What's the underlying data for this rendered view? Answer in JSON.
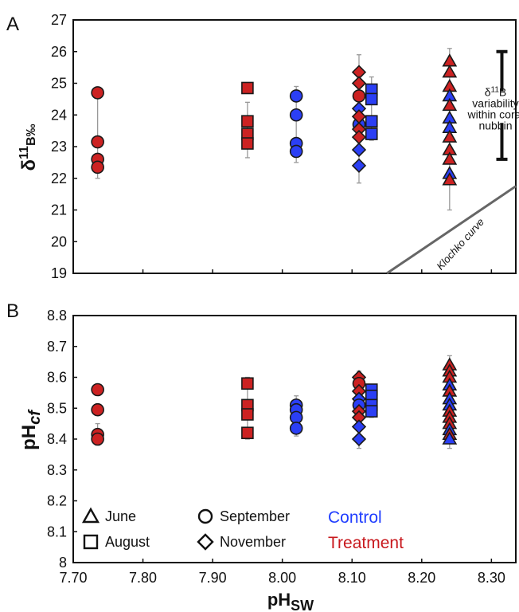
{
  "chart_data": [
    {
      "panel_label": "A",
      "type": "scatter",
      "ylabel_main": "δ",
      "ylabel_sup": "11",
      "ylabel_sub": "B‰",
      "ylim": [
        19,
        27
      ],
      "xlim": [
        7.7,
        8.335
      ],
      "yticks": [
        "19",
        "20",
        "21",
        "22",
        "23",
        "24",
        "25",
        "26",
        "27"
      ],
      "points": [
        {
          "x": 7.735,
          "y": 24.7,
          "month": "September",
          "group": "Treatment"
        },
        {
          "x": 7.735,
          "y": 23.15,
          "month": "September",
          "group": "Treatment"
        },
        {
          "x": 7.735,
          "y": 22.6,
          "month": "September",
          "group": "Treatment"
        },
        {
          "x": 7.735,
          "y": 22.35,
          "month": "September",
          "group": "Treatment"
        },
        {
          "x": 7.95,
          "y": 24.85,
          "month": "August",
          "group": "Treatment"
        },
        {
          "x": 7.95,
          "y": 23.8,
          "month": "August",
          "group": "Treatment"
        },
        {
          "x": 7.95,
          "y": 23.4,
          "month": "August",
          "group": "Treatment"
        },
        {
          "x": 7.95,
          "y": 23.1,
          "month": "August",
          "group": "Treatment"
        },
        {
          "x": 8.02,
          "y": 24.6,
          "month": "September",
          "group": "Control"
        },
        {
          "x": 8.02,
          "y": 24.0,
          "month": "September",
          "group": "Control"
        },
        {
          "x": 8.02,
          "y": 23.1,
          "month": "September",
          "group": "Control"
        },
        {
          "x": 8.02,
          "y": 22.85,
          "month": "September",
          "group": "Control"
        },
        {
          "x": 8.11,
          "y": 25.35,
          "month": "November",
          "group": "Treatment"
        },
        {
          "x": 8.11,
          "y": 25.0,
          "month": "November",
          "group": "Treatment"
        },
        {
          "x": 8.11,
          "y": 24.6,
          "month": "September",
          "group": "Treatment"
        },
        {
          "x": 8.11,
          "y": 24.2,
          "month": "November",
          "group": "Control"
        },
        {
          "x": 8.11,
          "y": 23.7,
          "month": "September",
          "group": "Control"
        },
        {
          "x": 8.11,
          "y": 23.95,
          "month": "November",
          "group": "Treatment"
        },
        {
          "x": 8.11,
          "y": 23.55,
          "month": "November",
          "group": "Treatment"
        },
        {
          "x": 8.11,
          "y": 23.3,
          "month": "November",
          "group": "Treatment"
        },
        {
          "x": 8.11,
          "y": 22.9,
          "month": "November",
          "group": "Control"
        },
        {
          "x": 8.11,
          "y": 22.4,
          "month": "November",
          "group": "Control"
        },
        {
          "x": 8.128,
          "y": 24.8,
          "month": "August",
          "group": "Control"
        },
        {
          "x": 8.128,
          "y": 24.5,
          "month": "August",
          "group": "Control"
        },
        {
          "x": 8.128,
          "y": 23.8,
          "month": "August",
          "group": "Control"
        },
        {
          "x": 8.128,
          "y": 23.4,
          "month": "August",
          "group": "Control"
        },
        {
          "x": 8.24,
          "y": 25.7,
          "month": "June",
          "group": "Treatment"
        },
        {
          "x": 8.24,
          "y": 25.35,
          "month": "June",
          "group": "Treatment"
        },
        {
          "x": 8.24,
          "y": 24.9,
          "month": "June",
          "group": "Treatment"
        },
        {
          "x": 8.24,
          "y": 24.6,
          "month": "June",
          "group": "Control"
        },
        {
          "x": 8.24,
          "y": 24.3,
          "month": "June",
          "group": "Treatment"
        },
        {
          "x": 8.24,
          "y": 23.9,
          "month": "June",
          "group": "Control"
        },
        {
          "x": 8.24,
          "y": 23.6,
          "month": "June",
          "group": "Control"
        },
        {
          "x": 8.24,
          "y": 23.3,
          "month": "June",
          "group": "Treatment"
        },
        {
          "x": 8.24,
          "y": 22.9,
          "month": "June",
          "group": "Treatment"
        },
        {
          "x": 8.24,
          "y": 22.6,
          "month": "June",
          "group": "Treatment"
        },
        {
          "x": 8.24,
          "y": 22.15,
          "month": "June",
          "group": "Control"
        },
        {
          "x": 8.24,
          "y": 21.95,
          "month": "June",
          "group": "Treatment"
        }
      ],
      "errorbars": [
        {
          "x": 7.735,
          "lo": 22.0,
          "hi": 24.85
        },
        {
          "x": 7.95,
          "lo": 22.65,
          "hi": 24.4
        },
        {
          "x": 8.02,
          "lo": 22.5,
          "hi": 24.9
        },
        {
          "x": 8.11,
          "lo": 21.85,
          "hi": 25.9
        },
        {
          "x": 8.128,
          "lo": 23.2,
          "hi": 25.2
        },
        {
          "x": 8.24,
          "lo": 21.0,
          "hi": 26.1
        }
      ],
      "variability_bar": {
        "x": 8.315,
        "lo": 22.6,
        "hi": 26.0
      },
      "variability_label": [
        "δ11B",
        "variability",
        "within coral",
        "nubbin"
      ],
      "variability_sup": "11",
      "klochko_line": {
        "x1": 8.15,
        "y1": 19.0,
        "x2": 8.335,
        "y2": 21.75
      },
      "klochko_label": "Klochko curve"
    },
    {
      "panel_label": "B",
      "type": "scatter",
      "ylabel_main": "pH",
      "ylabel_sub": "cf",
      "xlabel_main": "pH",
      "xlabel_sub": "SW",
      "ylim": [
        8.0,
        8.8
      ],
      "xlim": [
        7.7,
        8.335
      ],
      "yticks": [
        "8",
        "8.1",
        "8.2",
        "8.3",
        "8.4",
        "8.5",
        "8.6",
        "8.7",
        "8.8"
      ],
      "xticks": [
        "7.70",
        "7.80",
        "7.90",
        "8.00",
        "8.10",
        "8.20",
        "8.30"
      ],
      "points": [
        {
          "x": 7.735,
          "y": 8.56,
          "month": "September",
          "group": "Treatment"
        },
        {
          "x": 7.735,
          "y": 8.495,
          "month": "September",
          "group": "Treatment"
        },
        {
          "x": 7.735,
          "y": 8.415,
          "month": "September",
          "group": "Treatment"
        },
        {
          "x": 7.735,
          "y": 8.4,
          "month": "September",
          "group": "Treatment"
        },
        {
          "x": 7.95,
          "y": 8.58,
          "month": "August",
          "group": "Treatment"
        },
        {
          "x": 7.95,
          "y": 8.51,
          "month": "August",
          "group": "Treatment"
        },
        {
          "x": 7.95,
          "y": 8.48,
          "month": "August",
          "group": "Treatment"
        },
        {
          "x": 7.95,
          "y": 8.42,
          "month": "August",
          "group": "Treatment"
        },
        {
          "x": 8.02,
          "y": 8.51,
          "month": "September",
          "group": "Control"
        },
        {
          "x": 8.02,
          "y": 8.495,
          "month": "September",
          "group": "Control"
        },
        {
          "x": 8.02,
          "y": 8.47,
          "month": "September",
          "group": "Control"
        },
        {
          "x": 8.02,
          "y": 8.435,
          "month": "September",
          "group": "Control"
        },
        {
          "x": 8.11,
          "y": 8.6,
          "month": "November",
          "group": "Treatment"
        },
        {
          "x": 8.11,
          "y": 8.58,
          "month": "September",
          "group": "Treatment"
        },
        {
          "x": 8.11,
          "y": 8.555,
          "month": "November",
          "group": "Treatment"
        },
        {
          "x": 8.11,
          "y": 8.53,
          "month": "November",
          "group": "Control"
        },
        {
          "x": 8.11,
          "y": 8.51,
          "month": "September",
          "group": "Control"
        },
        {
          "x": 8.11,
          "y": 8.49,
          "month": "November",
          "group": "Treatment"
        },
        {
          "x": 8.11,
          "y": 8.47,
          "month": "November",
          "group": "Treatment"
        },
        {
          "x": 8.11,
          "y": 8.44,
          "month": "November",
          "group": "Control"
        },
        {
          "x": 8.11,
          "y": 8.4,
          "month": "November",
          "group": "Control"
        },
        {
          "x": 8.128,
          "y": 8.56,
          "month": "August",
          "group": "Control"
        },
        {
          "x": 8.128,
          "y": 8.54,
          "month": "August",
          "group": "Control"
        },
        {
          "x": 8.128,
          "y": 8.51,
          "month": "August",
          "group": "Control"
        },
        {
          "x": 8.128,
          "y": 8.49,
          "month": "August",
          "group": "Control"
        },
        {
          "x": 8.24,
          "y": 8.64,
          "month": "June",
          "group": "Treatment"
        },
        {
          "x": 8.24,
          "y": 8.62,
          "month": "June",
          "group": "Treatment"
        },
        {
          "x": 8.24,
          "y": 8.6,
          "month": "June",
          "group": "Treatment"
        },
        {
          "x": 8.24,
          "y": 8.575,
          "month": "June",
          "group": "Control"
        },
        {
          "x": 8.24,
          "y": 8.555,
          "month": "June",
          "group": "Treatment"
        },
        {
          "x": 8.24,
          "y": 8.53,
          "month": "June",
          "group": "Control"
        },
        {
          "x": 8.24,
          "y": 8.51,
          "month": "June",
          "group": "Control"
        },
        {
          "x": 8.24,
          "y": 8.49,
          "month": "June",
          "group": "Treatment"
        },
        {
          "x": 8.24,
          "y": 8.47,
          "month": "June",
          "group": "Treatment"
        },
        {
          "x": 8.24,
          "y": 8.45,
          "month": "June",
          "group": "Treatment"
        },
        {
          "x": 8.24,
          "y": 8.43,
          "month": "June",
          "group": "Control"
        },
        {
          "x": 8.24,
          "y": 8.415,
          "month": "June",
          "group": "Treatment"
        },
        {
          "x": 8.24,
          "y": 8.4,
          "month": "June",
          "group": "Control"
        }
      ],
      "errorbars": [
        {
          "x": 7.735,
          "lo": 8.38,
          "hi": 8.45
        },
        {
          "x": 7.95,
          "lo": 8.4,
          "hi": 8.6
        },
        {
          "x": 8.02,
          "lo": 8.41,
          "hi": 8.54
        },
        {
          "x": 8.11,
          "lo": 8.37,
          "hi": 8.62
        },
        {
          "x": 8.128,
          "lo": 8.47,
          "hi": 8.575
        },
        {
          "x": 8.24,
          "lo": 8.37,
          "hi": 8.67
        }
      ]
    }
  ],
  "legend": {
    "months": [
      {
        "label": "June",
        "shape": "triangle"
      },
      {
        "label": "August",
        "shape": "square"
      },
      {
        "label": "September",
        "shape": "circle"
      },
      {
        "label": "November",
        "shape": "diamond"
      }
    ],
    "groups": [
      {
        "label": "Control",
        "color": "#1f3dff"
      },
      {
        "label": "Treatment",
        "color": "#c8191e"
      }
    ]
  },
  "colors": {
    "Control": "#2b3ff5",
    "Treatment": "#cc2222",
    "axis": "#111111",
    "errorbar": "#999999",
    "klochko": "#666666"
  }
}
